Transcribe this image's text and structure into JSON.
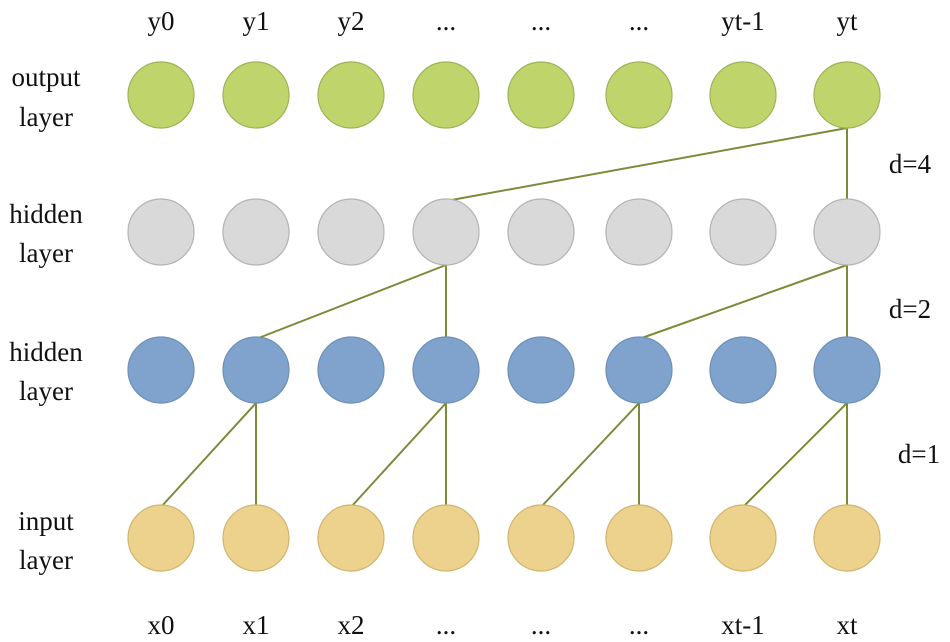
{
  "top_labels": [
    "y0",
    "y1",
    "y2",
    "...",
    "...",
    "...",
    "yt-1",
    "yt"
  ],
  "bottom_labels": [
    "x0",
    "x1",
    "x2",
    "...",
    "...",
    "...",
    "xt-1",
    "xt"
  ],
  "layers": [
    {
      "line1": "output",
      "line2": "layer",
      "fill": "#bfd46a",
      "edge": "#9cb45a"
    },
    {
      "line1": "hidden",
      "line2": "layer",
      "fill": "#d9d9d9",
      "edge": "#b3b3b3"
    },
    {
      "line1": "hidden",
      "line2": "layer",
      "fill": "#7fa3cc",
      "edge": "#6f8fb8"
    },
    {
      "line1": "input",
      "line2": "layer",
      "fill": "#ecd28c",
      "edge": "#d1b56f"
    }
  ],
  "dilations": [
    "d=4",
    "d=2",
    "d=1"
  ],
  "connections": [
    {
      "from_layer": 0,
      "from_node": 7,
      "to_layer": 1,
      "to_nodes": [
        3,
        7
      ]
    },
    {
      "from_layer": 1,
      "from_node": 3,
      "to_layer": 2,
      "to_nodes": [
        1,
        3
      ]
    },
    {
      "from_layer": 1,
      "from_node": 7,
      "to_layer": 2,
      "to_nodes": [
        5,
        7
      ]
    },
    {
      "from_layer": 2,
      "from_node": 1,
      "to_layer": 3,
      "to_nodes": [
        0,
        1
      ]
    },
    {
      "from_layer": 2,
      "from_node": 3,
      "to_layer": 3,
      "to_nodes": [
        2,
        3
      ]
    },
    {
      "from_layer": 2,
      "from_node": 5,
      "to_layer": 3,
      "to_nodes": [
        4,
        5
      ]
    },
    {
      "from_layer": 2,
      "from_node": 7,
      "to_layer": 3,
      "to_nodes": [
        6,
        7
      ]
    }
  ]
}
